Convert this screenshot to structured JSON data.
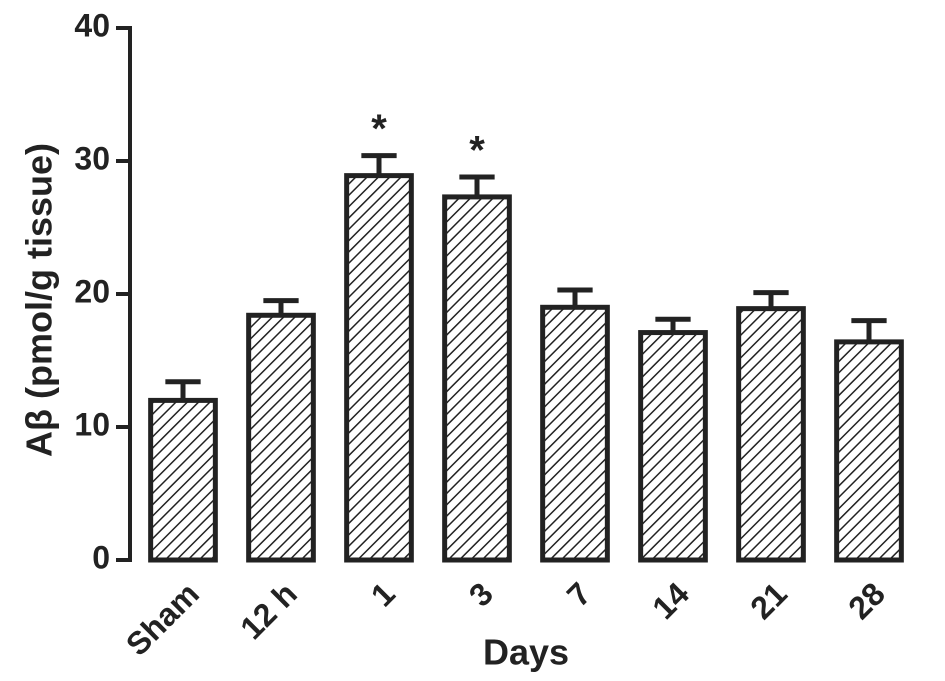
{
  "chart_data": {
    "type": "bar",
    "x_label": "Days",
    "y_label": "Aβ  (pmol/g tissue)",
    "categories": [
      "Sham",
      "12 h",
      "1",
      "3",
      "7",
      "14",
      "21",
      "28"
    ],
    "values": [
      12.0,
      18.4,
      28.9,
      27.3,
      19.0,
      17.1,
      18.9,
      16.4
    ],
    "errors": [
      1.4,
      1.1,
      1.5,
      1.5,
      1.3,
      1.0,
      1.2,
      1.6
    ],
    "annotations": [
      {
        "text": "*",
        "category": "1"
      },
      {
        "text": "*",
        "category": "3"
      }
    ],
    "color": "#222222",
    "ylim": [
      0,
      40
    ],
    "yticks": [
      0,
      10,
      20,
      30,
      40
    ],
    "grid": false
  }
}
